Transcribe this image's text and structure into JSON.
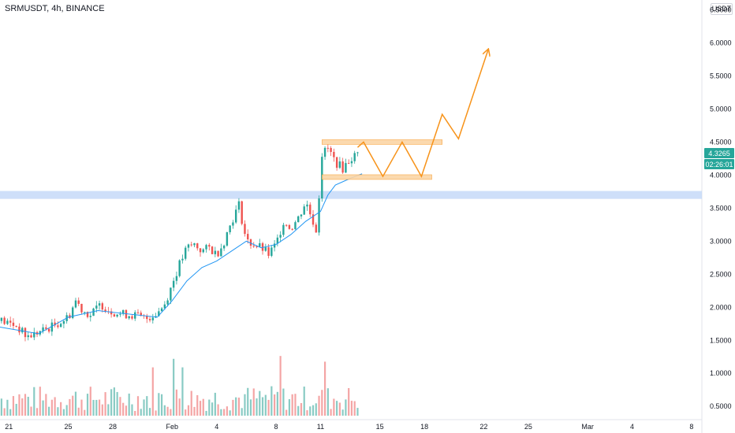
{
  "header": {
    "symbol": "SRMUSDT, 4h, BINANCE",
    "currency": "USDT"
  },
  "price_scale": {
    "last_price_label": "4.3265",
    "countdown_label": "02:26:01",
    "badge_color": "#26a69a"
  },
  "colors": {
    "up": "#26a69a",
    "down": "#ef5350",
    "volume_up": "#89cbc4",
    "volume_down": "#f4a5a5",
    "ma_line": "#2196f3",
    "projection": "#f7931a",
    "range_band": "#fbd5a6",
    "support_zone": "#c5d9f8",
    "grid": "#f0f3fa"
  },
  "chart_data": {
    "type": "candlestick",
    "title": "SRMUSDT, 4h, BINANCE",
    "y_axis": {
      "ticks": [
        "6.5000",
        "6.0000",
        "5.5000",
        "5.0000",
        "4.5000",
        "4.0000",
        "3.5000",
        "3.0000",
        "2.5000",
        "2.0000",
        "1.5000",
        "1.0000",
        "0.5000"
      ],
      "ylim": [
        0.3,
        6.65
      ],
      "unit": "USDT"
    },
    "x_axis": {
      "ticks": [
        {
          "label": "21",
          "day": 0
        },
        {
          "label": "25",
          "day": 4
        },
        {
          "label": "28",
          "day": 7
        },
        {
          "label": "Feb",
          "day": 11
        },
        {
          "label": "4",
          "day": 14
        },
        {
          "label": "8",
          "day": 18
        },
        {
          "label": "11",
          "day": 21
        },
        {
          "label": "15",
          "day": 25
        },
        {
          "label": "18",
          "day": 28
        },
        {
          "label": "22",
          "day": 32
        },
        {
          "label": "25",
          "day": 35
        },
        {
          "label": "Mar",
          "day": 39
        },
        {
          "label": "4",
          "day": 42
        },
        {
          "label": "8",
          "day": 46
        }
      ],
      "xlim": [
        -0.6,
        46.7
      ]
    },
    "price_path": [
      [
        -0.6,
        1.8
      ],
      [
        0.5,
        1.72
      ],
      [
        1.2,
        1.55
      ],
      [
        2,
        1.62
      ],
      [
        3,
        1.72
      ],
      [
        4,
        1.85
      ],
      [
        4.5,
        2.1
      ],
      [
        5,
        1.95
      ],
      [
        5.5,
        1.88
      ],
      [
        6.2,
        2.05
      ],
      [
        6.8,
        1.95
      ],
      [
        7.5,
        1.9
      ],
      [
        8.5,
        1.88
      ],
      [
        9.2,
        1.82
      ],
      [
        10,
        1.92
      ],
      [
        10.5,
        2.05
      ],
      [
        11,
        2.35
      ],
      [
        11.5,
        2.65
      ],
      [
        12,
        2.9
      ],
      [
        12.5,
        2.95
      ],
      [
        13,
        2.85
      ],
      [
        13.5,
        2.9
      ],
      [
        14,
        2.8
      ],
      [
        14.5,
        3.0
      ],
      [
        15,
        3.3
      ],
      [
        15.5,
        3.55
      ],
      [
        16,
        3.0
      ],
      [
        16.5,
        2.95
      ],
      [
        17,
        2.9
      ],
      [
        17.5,
        2.8
      ],
      [
        18,
        2.95
      ],
      [
        18.5,
        3.3
      ],
      [
        19,
        3.2
      ],
      [
        19.5,
        3.35
      ],
      [
        20,
        3.6
      ],
      [
        20.5,
        3.3
      ],
      [
        20.8,
        3.1
      ],
      [
        21,
        4.3
      ],
      [
        21.5,
        4.4
      ],
      [
        22,
        4.2
      ],
      [
        22.5,
        4.1
      ],
      [
        23,
        4.25
      ],
      [
        23.5,
        4.32
      ]
    ],
    "candle_step_days": 0.2,
    "moving_average": [
      [
        -0.6,
        1.7
      ],
      [
        2,
        1.6
      ],
      [
        4,
        1.85
      ],
      [
        6,
        1.95
      ],
      [
        8,
        1.9
      ],
      [
        10,
        1.85
      ],
      [
        11,
        2.1
      ],
      [
        12,
        2.4
      ],
      [
        13,
        2.6
      ],
      [
        14,
        2.7
      ],
      [
        15,
        2.85
      ],
      [
        16,
        3.0
      ],
      [
        17,
        2.9
      ],
      [
        18,
        2.95
      ],
      [
        19,
        3.1
      ],
      [
        20,
        3.3
      ],
      [
        21,
        3.45
      ],
      [
        21.5,
        3.7
      ],
      [
        22,
        3.85
      ],
      [
        23,
        3.95
      ],
      [
        23.8,
        4.02
      ]
    ],
    "volume_scale_max": 1.8,
    "volume_spikes": [
      {
        "day": 9.7,
        "value": 0.85
      },
      {
        "day": 11,
        "value": 1.0
      },
      {
        "day": 11.6,
        "value": 0.85
      },
      {
        "day": 18.2,
        "value": 1.05
      },
      {
        "day": 21.2,
        "value": 1.78
      },
      {
        "day": 21.3,
        "value": 0.95
      }
    ],
    "annotations": {
      "support_zone": {
        "low": 3.64,
        "high": 3.76
      },
      "range_top": {
        "price": 4.5,
        "day_from": 21.1,
        "day_to": 29.2
      },
      "range_bottom": {
        "price": 3.97,
        "day_from": 21.1,
        "day_to": 28.5
      },
      "projection_path": [
        [
          23.5,
          4.42
        ],
        [
          23.9,
          4.5
        ],
        [
          25.2,
          3.98
        ],
        [
          26.5,
          4.5
        ],
        [
          27.8,
          3.98
        ],
        [
          29.2,
          4.92
        ],
        [
          30.3,
          4.55
        ],
        [
          32.3,
          5.9
        ]
      ]
    },
    "last_price": 4.3265
  }
}
